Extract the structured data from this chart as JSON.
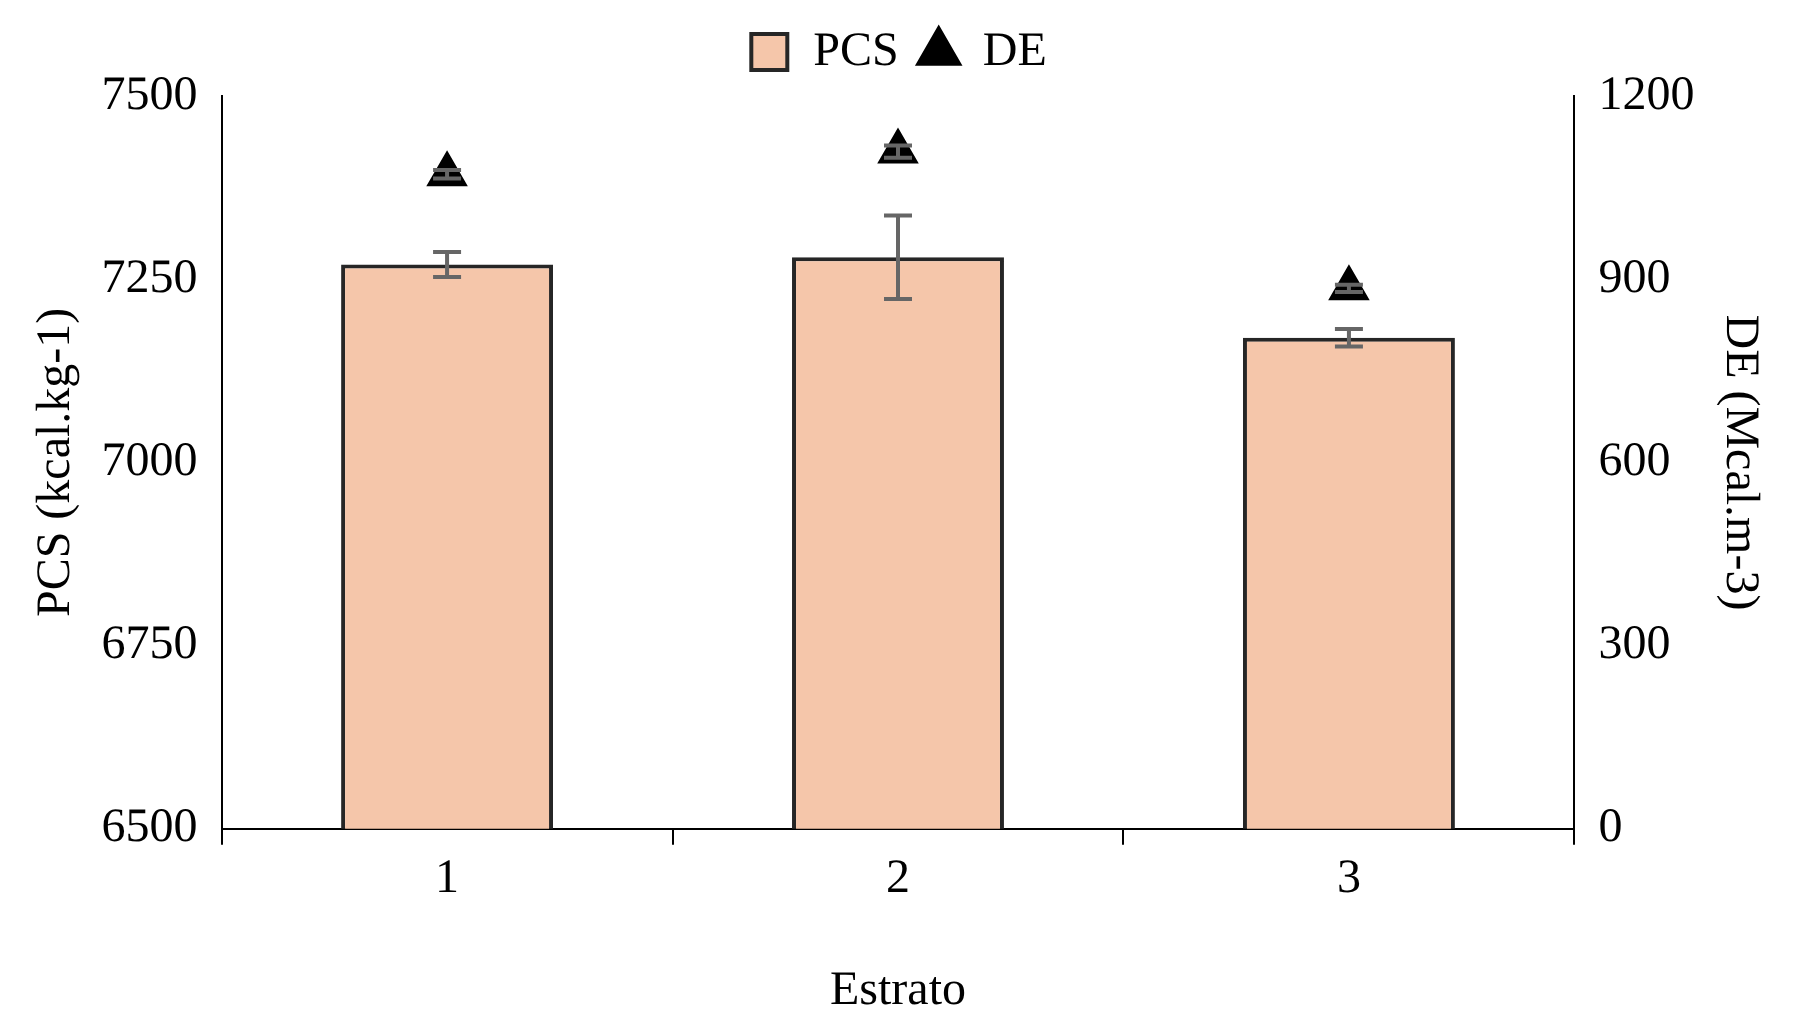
{
  "chart_data": {
    "type": "bar",
    "xlabel": "Estrato",
    "ylabel": "PCS (kcal.kg-1)",
    "y2label": "DE (Mcal.m-3)",
    "categories": [
      "1",
      "2",
      "3"
    ],
    "series": [
      {
        "name": "PCS",
        "color": "#f5c6aa",
        "values": [
          7270,
          7280,
          7170
        ],
        "errors": [
          17,
          57,
          12
        ]
      },
      {
        "name": "DE",
        "type": "scatter",
        "axis": "y2",
        "color": "#000000",
        "marker": "triangle",
        "x": [
          "1",
          "2",
          "3"
        ],
        "values": [
          1072,
          1109,
          885
        ],
        "errors": [
          7,
          10,
          6
        ]
      }
    ],
    "ylim": [
      6500,
      7500
    ],
    "yticks": [
      6500,
      6750,
      7000,
      7250,
      7500
    ],
    "y2lim": [
      0,
      1200
    ],
    "y2ticks": [
      0,
      300,
      600,
      900,
      1200
    ],
    "grid": false,
    "legend": "top"
  }
}
